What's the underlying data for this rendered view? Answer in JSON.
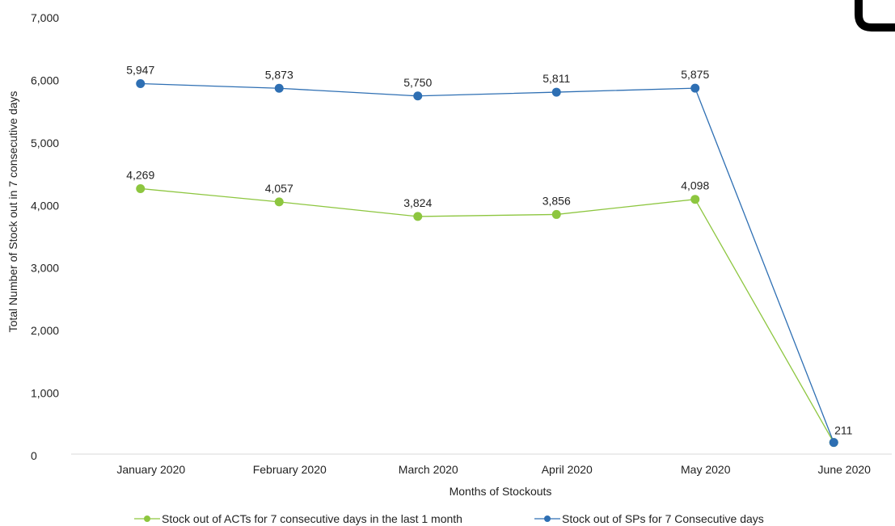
{
  "chart_data": {
    "type": "line",
    "title": "",
    "xlabel": "Months of Stockouts",
    "ylabel": "Total Number of Stock out in 7 consecutive days",
    "ylim": [
      0,
      7000
    ],
    "yticks": [
      "0",
      "1,000",
      "2,000",
      "3,000",
      "4,000",
      "5,000",
      "6,000",
      "7,000"
    ],
    "categories": [
      "January 2020",
      "February 2020",
      "March 2020",
      "April 2020",
      "May 2020",
      "June 2020"
    ],
    "grid": false,
    "legend_position": "bottom",
    "series": [
      {
        "name": "Stock out of ACTs for 7 consecutive days in the last 1 month",
        "color": "#8dc63f",
        "values": [
          4269,
          4057,
          3824,
          3856,
          4098,
          211
        ],
        "labels": [
          "4,269",
          "4,057",
          "3,824",
          "3,856",
          "4,098",
          ""
        ]
      },
      {
        "name": "Stock out of SPs for 7 Consecutive days",
        "color": "#2e6fb3",
        "values": [
          5947,
          5873,
          5750,
          5811,
          5875,
          211
        ],
        "labels": [
          "5,947",
          "5,873",
          "5,750",
          "5,811",
          "5,875",
          "211"
        ]
      }
    ]
  }
}
